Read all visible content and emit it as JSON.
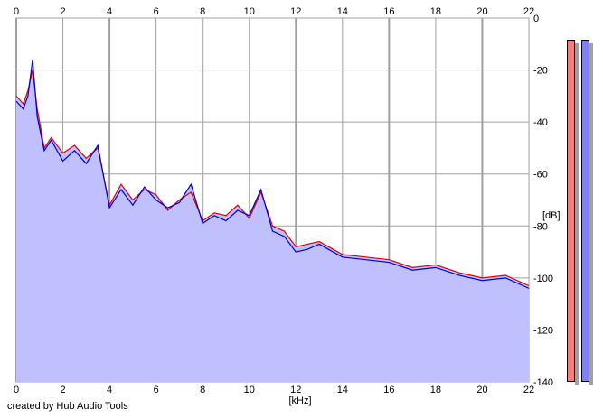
{
  "chart_data": {
    "type": "area",
    "title": "",
    "xlabel": "[kHz]",
    "ylabel": "[dB]",
    "xlim": [
      0,
      22
    ],
    "ylim": [
      -140,
      0
    ],
    "x_ticks": [
      "0",
      "2",
      "4",
      "6",
      "8",
      "10",
      "12",
      "14",
      "16",
      "18",
      "20",
      "22"
    ],
    "y_ticks": [
      "0",
      "-20",
      "-40",
      "-60",
      "-80",
      "-100",
      "-120",
      "-140"
    ],
    "grid": true,
    "series": [
      {
        "color": "#e00000",
        "x": [
          0,
          0.3,
          0.5,
          0.7,
          0.9,
          1.2,
          1.5,
          2.0,
          2.5,
          3.0,
          3.5,
          4.0,
          4.5,
          5.0,
          5.5,
          6.0,
          6.5,
          7.0,
          7.5,
          8.0,
          8.5,
          9.0,
          9.5,
          10.0,
          10.5,
          11.0,
          11.5,
          12.0,
          12.5,
          13.0,
          14.0,
          15.0,
          16.0,
          17.0,
          18.0,
          19.0,
          20.0,
          21.0,
          22.0
        ],
        "values": [
          -30,
          -33,
          -28,
          -20,
          -35,
          -50,
          -46,
          -52,
          -49,
          -54,
          -50,
          -72,
          -64,
          -70,
          -66,
          -68,
          -74,
          -70,
          -67,
          -78,
          -75,
          -76,
          -72,
          -77,
          -67,
          -80,
          -82,
          -88,
          -87,
          -86,
          -91,
          -92,
          -93,
          -96,
          -95,
          -98,
          -100,
          -99,
          -103
        ]
      },
      {
        "color": "#0000c8",
        "x": [
          0,
          0.3,
          0.5,
          0.7,
          0.9,
          1.2,
          1.5,
          2.0,
          2.5,
          3.0,
          3.5,
          4.0,
          4.5,
          5.0,
          5.5,
          6.0,
          6.5,
          7.0,
          7.5,
          8.0,
          8.5,
          9.0,
          9.5,
          10.0,
          10.5,
          11.0,
          11.5,
          12.0,
          12.5,
          13.0,
          14.0,
          15.0,
          16.0,
          17.0,
          18.0,
          19.0,
          20.0,
          21.0,
          22.0
        ],
        "values": [
          -32,
          -35,
          -30,
          -16,
          -38,
          -51,
          -47,
          -55,
          -51,
          -56,
          -49,
          -73,
          -66,
          -72,
          -65,
          -70,
          -73,
          -71,
          -64,
          -79,
          -76,
          -78,
          -74,
          -76,
          -66,
          -82,
          -84,
          -90,
          -89,
          -87,
          -92,
          -93,
          -94,
          -97,
          -96,
          -99,
          -101,
          -100,
          -104
        ]
      }
    ],
    "fill_color": "#c0c0ff",
    "meters": [
      {
        "color": "#f08080"
      },
      {
        "color": "#8080f0"
      }
    ]
  },
  "footer": {
    "credit": "created by Hub Audio Tools"
  }
}
